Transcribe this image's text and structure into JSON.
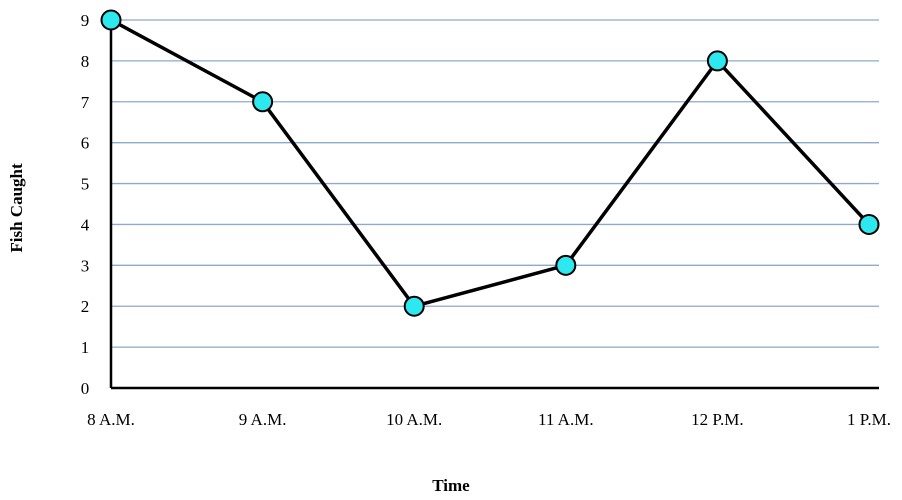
{
  "chart_data": {
    "type": "line",
    "title": "",
    "xlabel": "Time",
    "ylabel": "Fish Caught",
    "categories": [
      "8 A.M.",
      "9 A.M.",
      "10 A.M.",
      "11 A.M.",
      "12 P.M.",
      "1 P.M."
    ],
    "series": [
      {
        "values": [
          9,
          7,
          2,
          3,
          8,
          4
        ]
      }
    ],
    "ylim": [
      0,
      9
    ],
    "yticks": [
      "0",
      "1",
      "2",
      "3",
      "4",
      "5",
      "6",
      "7",
      "8",
      "9"
    ],
    "grid": true,
    "legend": "none",
    "colors": {
      "line": "#000000",
      "marker_fill": "#2EE8F0",
      "marker_stroke": "#000000",
      "grid": "#8EA9C9",
      "axis": "#000000"
    }
  }
}
